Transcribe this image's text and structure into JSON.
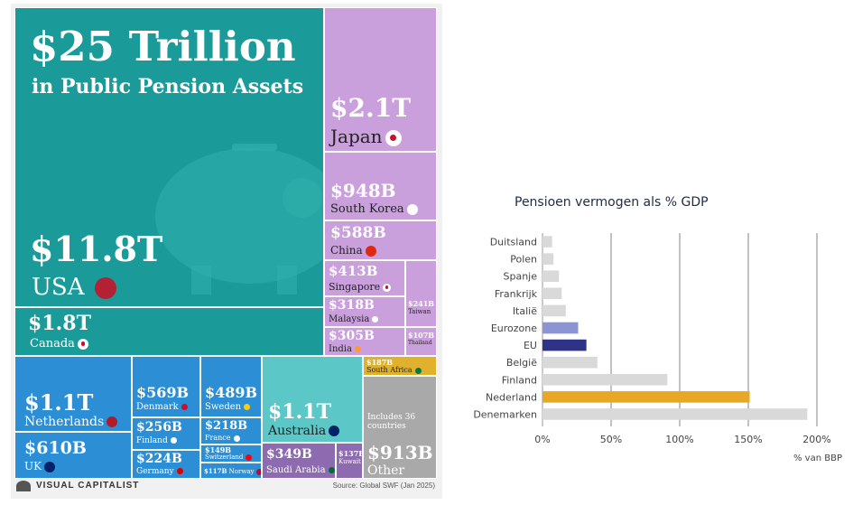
{
  "infographic": {
    "title": "$25 Trillion",
    "subtitle": "in Public Pension Assets",
    "brand": "VISUAL CAPITALIST",
    "source": "Source: Global SWF (Jan 2025)",
    "usa": {
      "value": "$11.8T",
      "name": "USA"
    },
    "japan": {
      "value": "$2.1T",
      "name": "Japan"
    },
    "south_korea": {
      "value": "$948B",
      "name": "South Korea"
    },
    "china": {
      "value": "$588B",
      "name": "China"
    },
    "singapore": {
      "value": "$413B",
      "name": "Singapore"
    },
    "malaysia": {
      "value": "$318B",
      "name": "Malaysia"
    },
    "taiwan": {
      "value": "$241B",
      "name": "Taiwan"
    },
    "india": {
      "value": "$305B",
      "name": "India"
    },
    "thailand": {
      "value": "$107B",
      "name": "Thailand"
    },
    "canada": {
      "value": "$1.8T",
      "name": "Canada"
    },
    "netherlands": {
      "value": "$1.1T",
      "name": "Netherlands"
    },
    "uk": {
      "value": "$610B",
      "name": "UK"
    },
    "denmark": {
      "value": "$569B",
      "name": "Denmark"
    },
    "sweden": {
      "value": "$489B",
      "name": "Sweden"
    },
    "finland": {
      "value": "$256B",
      "name": "Finland"
    },
    "france": {
      "value": "$218B",
      "name": "France"
    },
    "germany": {
      "value": "$224B",
      "name": "Germany"
    },
    "switzerland": {
      "value": "$149B",
      "name": "Switzerland"
    },
    "norway": {
      "value": "$117B",
      "name": "Norway"
    },
    "australia": {
      "value": "$1.1T",
      "name": "Australia"
    },
    "south_africa": {
      "value": "$187B",
      "name": "South Africa"
    },
    "saudi_arabia": {
      "value": "$349B",
      "name": "Saudi Arabia"
    },
    "kuwait": {
      "value": "$137B",
      "name": "Kuwait"
    },
    "other": {
      "value": "$913B",
      "name": "Other",
      "note": "Includes 36 countries"
    }
  },
  "colors": {
    "teal": "#1b9a9a",
    "purple": "#c9a0dc",
    "blue": "#2c8fd6",
    "aqua": "#5cc7c7",
    "grey": "#a9a9a9",
    "gold": "#e0b12c",
    "bar_grey": "#d9d9d9",
    "bar_eurozone": "#8c94d6",
    "bar_eu": "#2e3388",
    "bar_nl": "#e8a826"
  },
  "chart_data": {
    "type": "bar",
    "orientation": "horizontal",
    "title": "Pensioen vermogen als % GDP",
    "categories": [
      "Duitsland",
      "Polen",
      "Spanje",
      "Frankrijk",
      "Italië",
      "Eurozone",
      "EU",
      "België",
      "Finland",
      "Nederland",
      "Denemarken"
    ],
    "values": [
      7,
      8,
      12,
      14,
      17,
      26,
      32,
      40,
      91,
      151,
      193
    ],
    "xlabel": "% van BBP",
    "xlim": [
      0,
      200
    ],
    "xticks": [
      "0%",
      "50%",
      "100%",
      "150%",
      "200%"
    ],
    "grid": true
  }
}
